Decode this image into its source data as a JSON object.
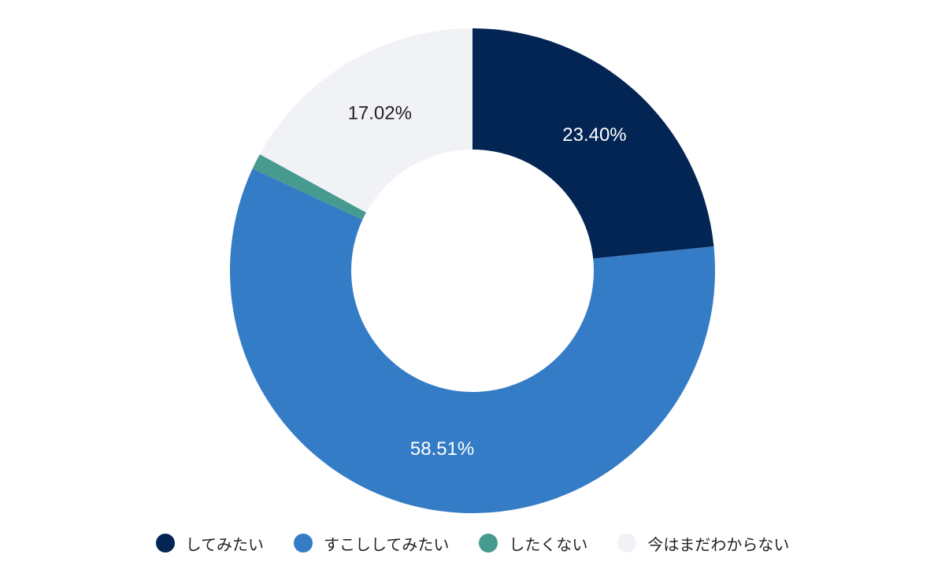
{
  "chart_data": {
    "type": "pie",
    "donut": true,
    "categories": [
      "してみたい",
      "すこししてみたい",
      "したくない",
      "今はまだわからない"
    ],
    "values": [
      23.4,
      58.51,
      1.06,
      17.02
    ],
    "labels": [
      "23.40%",
      "58.51%",
      "",
      "17.02%"
    ],
    "colors": [
      "#032554",
      "#357CC6",
      "#479A90",
      "#F1F2F6"
    ],
    "label_colors": [
      "#ffffff",
      "#ffffff",
      "#ffffff",
      "#222222"
    ],
    "legend_position": "bottom",
    "start": "top",
    "direction": "clockwise"
  }
}
